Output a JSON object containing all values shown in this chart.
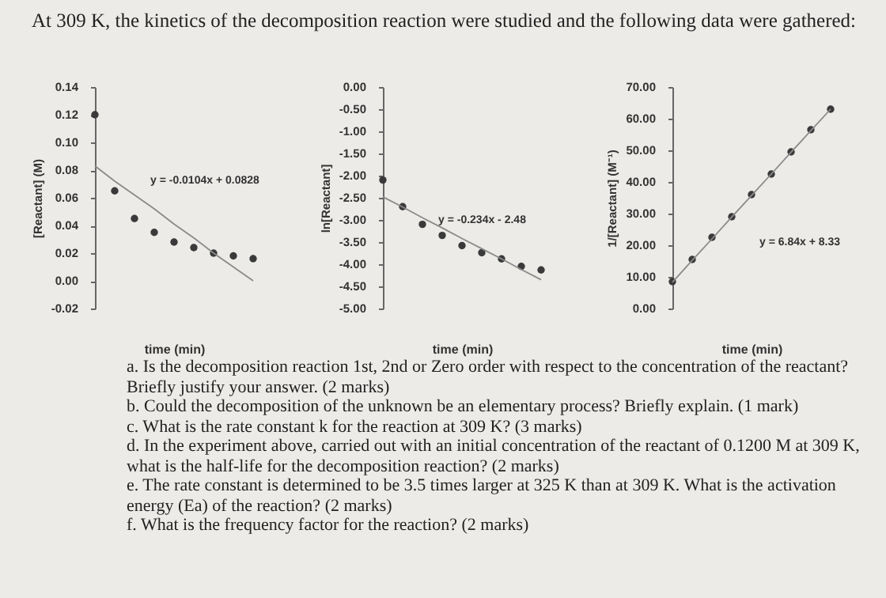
{
  "chart_data": [
    {
      "type": "scatter",
      "title": "At 309 K, the kinetics of the decomposition reaction were studied and the following data were gathered:",
      "ylabel": "[Reactant] (M)",
      "xlabel": "time (min)",
      "categories": [
        null,
        null,
        null,
        null,
        null,
        null,
        null,
        null,
        null
      ],
      "marker": "circle",
      "tick_labels": "y",
      "grid": false,
      "ylim": [
        -0.02,
        0.14
      ],
      "yticks": [
        {
          "value": -0.02,
          "label": "-0.02"
        },
        {
          "value": 0,
          "label": "0.00"
        },
        {
          "value": 0.02,
          "label": "0.02"
        },
        {
          "value": 0.04,
          "label": "0.04"
        },
        {
          "value": 0.06,
          "label": "0.06"
        },
        {
          "value": 0.08,
          "label": "0.08"
        },
        {
          "value": 0.1,
          "label": "0.10"
        },
        {
          "value": 0.12,
          "label": "0.12"
        },
        {
          "value": 0.14,
          "label": "0.14"
        }
      ],
      "annotations": [
        "y = -0.0104x + 0.0828"
      ],
      "series": [
        {
          "type": "scatter",
          "color": "#3a3a3a",
          "values": [
            0.12,
            0.065,
            0.045,
            0.035,
            0.028,
            0.024,
            0.02,
            0.018,
            0.016
          ]
        },
        {
          "type": "line",
          "marker": "none",
          "color": "#8a8a8a",
          "values": [
            0.083,
            0.072,
            0.062,
            0.052,
            0.041,
            0.031,
            0.02,
            0.01,
            0.0
          ]
        }
      ]
    },
    {
      "type": "scatter",
      "ylabel": "ln[Reactant]",
      "xlabel": "time (min)",
      "categories": [
        null,
        null,
        null,
        null,
        null,
        null,
        null,
        null,
        null
      ],
      "marker": "circle",
      "tick_labels": "y",
      "grid": false,
      "ylim": [
        -5,
        0
      ],
      "yticks": [
        {
          "value": -5,
          "label": "-5.00"
        },
        {
          "value": -4.5,
          "label": "-4.50"
        },
        {
          "value": -4,
          "label": "-4.00"
        },
        {
          "value": -3.5,
          "label": "-3.50"
        },
        {
          "value": -3,
          "label": "-3.00"
        },
        {
          "value": -2.5,
          "label": "-2.50"
        },
        {
          "value": -2,
          "label": "-2.00"
        },
        {
          "value": -1.5,
          "label": "-1.50"
        },
        {
          "value": -1,
          "label": "-1.00"
        },
        {
          "value": -0.5,
          "label": "-0.50"
        },
        {
          "value": 0,
          "label": "0.00"
        }
      ],
      "annotations": [
        "y = -0.234x - 2.48"
      ],
      "series": [
        {
          "type": "scatter",
          "color": "#3a3a3a",
          "values": [
            -2.1,
            -2.7,
            -3.1,
            -3.35,
            -3.58,
            -3.74,
            -3.88,
            -4.05,
            -4.13
          ]
        },
        {
          "type": "line",
          "marker": "none",
          "color": "#8a8a8a",
          "values": [
            -2.48,
            -2.71,
            -2.95,
            -3.18,
            -3.42,
            -3.65,
            -3.88,
            -4.12,
            -4.35
          ]
        }
      ]
    },
    {
      "type": "scatter",
      "ylabel": "1/[Reactant] (M⁻¹)",
      "xlabel": "time (min)",
      "categories": [
        null,
        null,
        null,
        null,
        null,
        null,
        null,
        null,
        null
      ],
      "marker": "circle",
      "tick_labels": "y",
      "grid": false,
      "ylim": [
        0,
        70
      ],
      "yticks": [
        {
          "value": 0,
          "label": "0.00"
        },
        {
          "value": 10,
          "label": "10.00"
        },
        {
          "value": 20,
          "label": "20.00"
        },
        {
          "value": 30,
          "label": "30.00"
        },
        {
          "value": 40,
          "label": "40.00"
        },
        {
          "value": 50,
          "label": "50.00"
        },
        {
          "value": 60,
          "label": "60.00"
        },
        {
          "value": 70,
          "label": "70.00"
        }
      ],
      "annotations": [
        "y = 6.84x + 8.33",
        "a. Is the decomposition reaction 1st, 2nd or Zero order with respect to the concentration of the reactant? Briefly justify your answer. (2 marks)",
        "b. Could the decomposition of the unknown be an elementary process? Briefly explain. (1 mark)",
        "c. What is the rate constant k for the reaction at 309 K? (3 marks)",
        "d. In the experiment above, carried out with an initial concentration of the reactant of 0.1200 M at 309 K, what is the half-life for the decomposition reaction? (2 marks)",
        "e. The rate constant is determined to be 3.5 times larger at 325 K than at 309 K. What is the activation energy (Ea) of the reaction? (2 marks)",
        "f. What is the frequency factor for the reaction? (2 marks)"
      ],
      "series": [
        {
          "type": "scatter",
          "color": "#3a3a3a",
          "values": [
            8.5,
            15.5,
            22.5,
            29,
            36,
            42.5,
            49.5,
            56.5,
            63
          ]
        },
        {
          "type": "line",
          "marker": "none",
          "color": "#8a8a8a",
          "values": [
            8.3,
            15.2,
            22,
            28.9,
            35.7,
            42.5,
            49.4,
            56.2,
            63.0
          ]
        }
      ]
    }
  ]
}
